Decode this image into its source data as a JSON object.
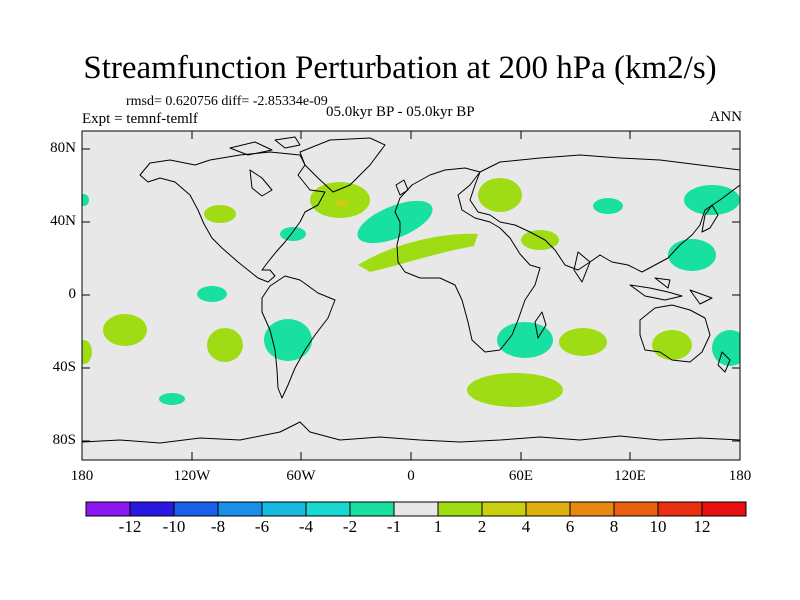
{
  "title": "Streamfunction Perturbation at 200 hPa (km2/s)",
  "stats_text": "rmsd= 0.620756 diff= -2.85334e-09",
  "experiment": "Expt = temnf-temlf",
  "period": "05.0kyr BP - 05.0kyr BP",
  "season": "ANN",
  "lat_labels": [
    "80N",
    "40N",
    "0",
    "40S",
    "80S"
  ],
  "lon_labels": [
    "180",
    "120W",
    "60W",
    "0",
    "60E",
    "120E",
    "180"
  ],
  "colorbar": {
    "labels": [
      "-12",
      "-10",
      "-8",
      "-6",
      "-4",
      "-2",
      "-1",
      "1",
      "2",
      "4",
      "6",
      "8",
      "10",
      "12"
    ],
    "colors": [
      "#8c18f0",
      "#2818e0",
      "#1860e8",
      "#1890e8",
      "#18b8e0",
      "#18d8d0",
      "#18e0a0",
      "#e8e8e8",
      "#a0dc14",
      "#c8d010",
      "#e0b010",
      "#e88810",
      "#e86010",
      "#e83010",
      "#e81010"
    ]
  },
  "colors": {
    "land_background": "#e8e8e8",
    "neg_small": "#18e0a0",
    "pos_small": "#a0dc14",
    "pos_medium": "#c8d010"
  }
}
